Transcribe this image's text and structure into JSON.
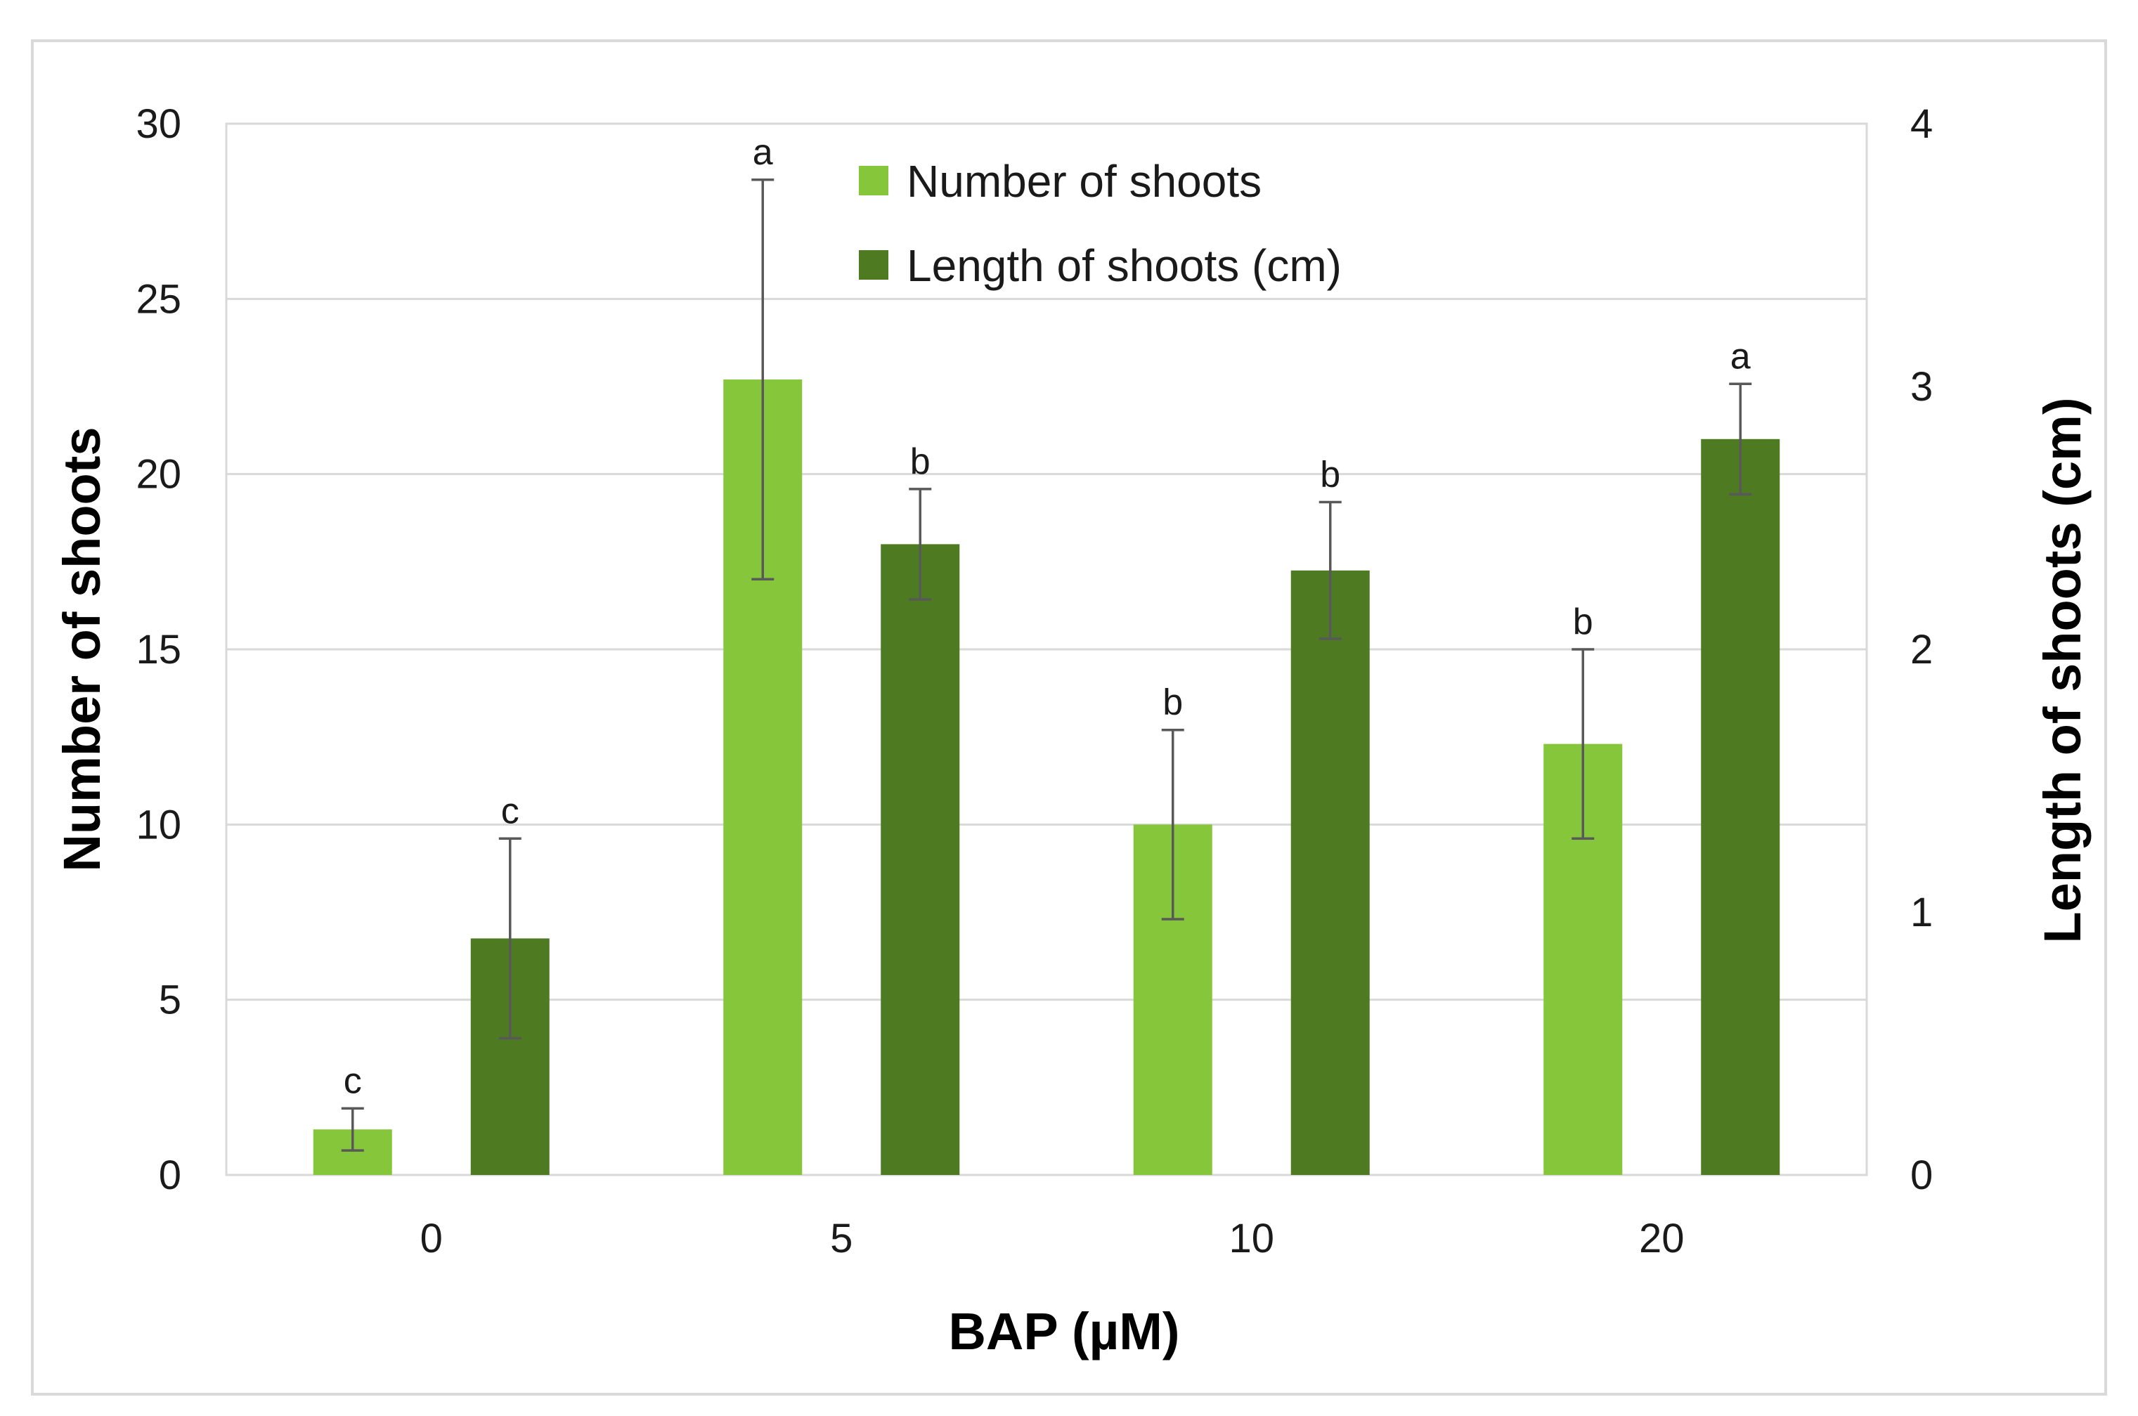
{
  "chart_data": {
    "type": "bar",
    "title": "",
    "xlabel": "BAP (µM)",
    "ylabel": "Number of shoots",
    "y2label": "Length of shoots (cm)",
    "categories": [
      "0",
      "5",
      "10",
      "20"
    ],
    "ylim": [
      0,
      30
    ],
    "y2lim": [
      0,
      4
    ],
    "yticks": [
      "0",
      "5",
      "10",
      "15",
      "20",
      "25",
      "30"
    ],
    "y2ticks": [
      "0",
      "1",
      "2",
      "3",
      "4"
    ],
    "grid": true,
    "legend_position": "top-center",
    "series": [
      {
        "name": "Number of shoots",
        "axis": "left",
        "color": "#85c63b",
        "values": [
          1.3,
          22.7,
          10.0,
          12.3
        ],
        "errors": [
          0.6,
          5.7,
          2.7,
          2.7
        ],
        "letters": [
          "c",
          "a",
          "b",
          "b"
        ]
      },
      {
        "name": "Length of shoots (cm)",
        "axis": "right",
        "color": "#4e7a22",
        "values": [
          0.9,
          2.4,
          2.3,
          2.8
        ],
        "errors": [
          0.38,
          0.21,
          0.26,
          0.21
        ],
        "letters": [
          "c",
          "b",
          "b",
          "a"
        ]
      }
    ]
  }
}
